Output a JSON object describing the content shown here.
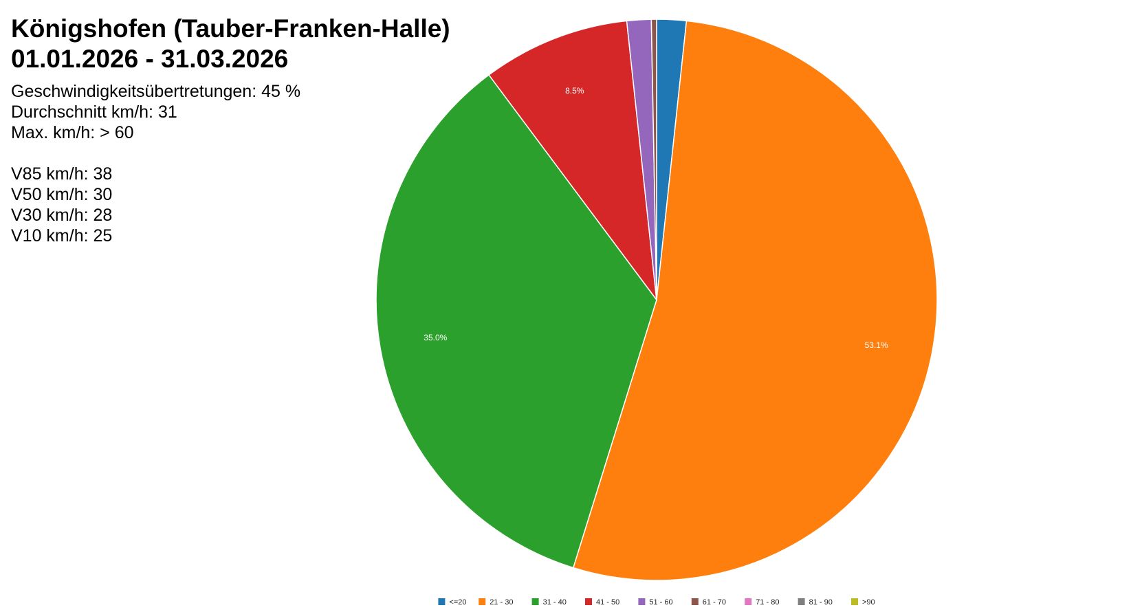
{
  "header": {
    "location": "Königshofen (Tauber-Franken-Halle)",
    "period": "01.01.2026 - 31.03.2026"
  },
  "stats": {
    "speeding": "Geschwindigkeitsübertretungen: 45 %",
    "average": "Durchschnitt km/h: 31",
    "max": "Max. km/h: > 60",
    "v85": "V85 km/h: 38",
    "v50": "V50 km/h: 30",
    "v30": "V30 km/h: 28",
    "v10": "V10 km/h: 25"
  },
  "chart_data": {
    "type": "pie",
    "title": "",
    "categories": [
      "<=20",
      "21 - 30",
      "31 - 40",
      "41 - 50",
      "51 - 60",
      "61 - 70",
      "71 - 80",
      "81 - 90",
      ">90"
    ],
    "values": [
      1.7,
      53.1,
      35.0,
      8.5,
      1.4,
      0.3,
      0.0,
      0.0,
      0.0
    ],
    "data_labels": [
      "",
      "53.1%",
      "35.0%",
      "8.5%",
      "",
      "",
      "",
      "",
      ""
    ],
    "colors": [
      "#1f77b4",
      "#ff7f0e",
      "#2ca02c",
      "#d62728",
      "#9467bd",
      "#8c564b",
      "#e377c2",
      "#7f7f7f",
      "#bcbd22"
    ],
    "start_angle": "12 o'clock",
    "direction": "clockwise",
    "legend_position": "bottom-center"
  }
}
